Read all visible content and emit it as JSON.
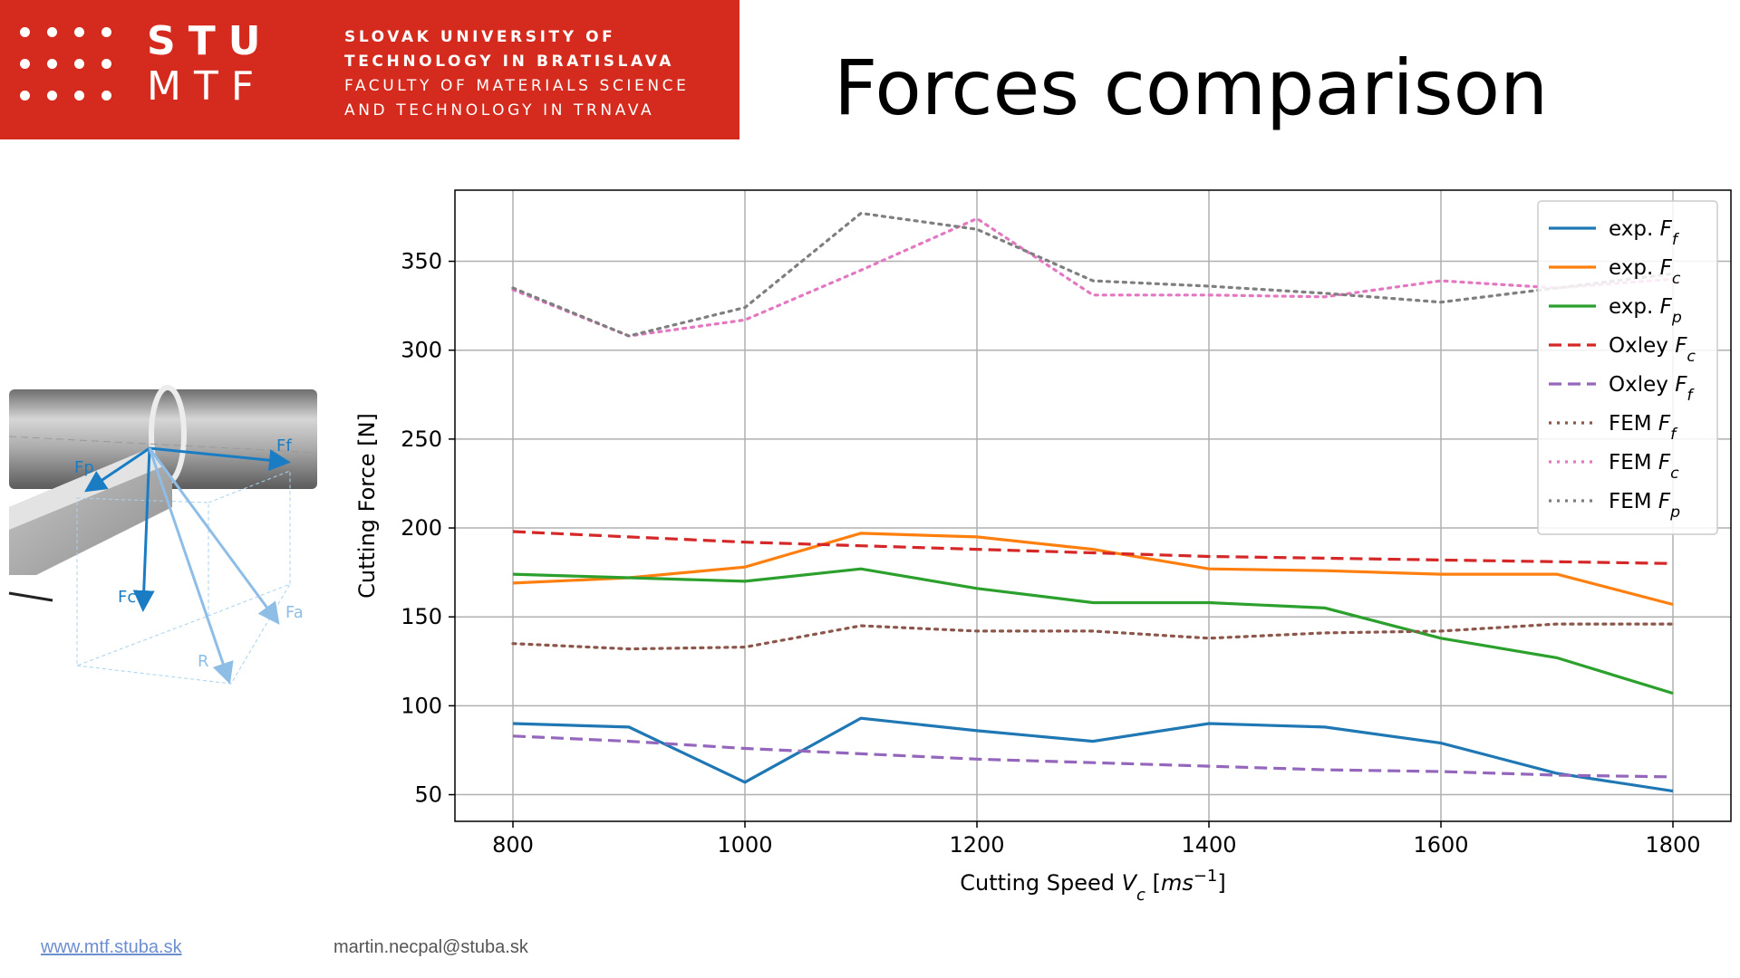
{
  "header": {
    "logo_top": "STU",
    "logo_bottom": "MTF",
    "university_lines": [
      "SLOVAK UNIVERSITY OF",
      "TECHNOLOGY IN BRATISLAVA",
      "FACULTY OF MATERIALS SCIENCE",
      "AND TECHNOLOGY IN TRNAVA"
    ],
    "brand_color": "#d52b1e"
  },
  "slide": {
    "title": "Forces comparison"
  },
  "diagram": {
    "labels": [
      "Ff",
      "Fp",
      "Fc",
      "Fa",
      "R"
    ]
  },
  "footer": {
    "link": "www.mtf.stuba.sk",
    "email": "martin.necpal@stuba.sk"
  },
  "chart_data": {
    "type": "line",
    "title": "",
    "xlabel": "Cutting Speed V_c [ms^-1]",
    "ylabel": "Cutting Force [N]",
    "xlim": [
      750,
      1850
    ],
    "ylim": [
      35,
      390
    ],
    "xticks": [
      800,
      1000,
      1200,
      1400,
      1600,
      1800
    ],
    "yticks": [
      50,
      100,
      150,
      200,
      250,
      300,
      350
    ],
    "grid": true,
    "legend_position": "top-right",
    "x": [
      800,
      900,
      1000,
      1100,
      1200,
      1300,
      1400,
      1500,
      1600,
      1700,
      1800
    ],
    "series": [
      {
        "name": "exp. F_f",
        "color": "#1f77b4",
        "style": "solid",
        "values": [
          90,
          88,
          57,
          93,
          86,
          80,
          90,
          88,
          79,
          62,
          52
        ]
      },
      {
        "name": "exp. F_c",
        "color": "#ff7f0e",
        "style": "solid",
        "values": [
          169,
          172,
          178,
          197,
          195,
          188,
          177,
          176,
          174,
          174,
          157
        ]
      },
      {
        "name": "exp. F_p",
        "color": "#2ca02c",
        "style": "solid",
        "values": [
          174,
          172,
          170,
          177,
          166,
          158,
          158,
          155,
          138,
          127,
          107
        ]
      },
      {
        "name": "Oxley F_c",
        "color": "#d62728",
        "style": "dashed",
        "values": [
          198,
          195,
          192,
          190,
          188,
          186,
          184,
          183,
          182,
          181,
          180
        ]
      },
      {
        "name": "Oxley F_f",
        "color": "#9467bd",
        "style": "dashed",
        "values": [
          83,
          80,
          76,
          73,
          70,
          68,
          66,
          64,
          63,
          61,
          60
        ]
      },
      {
        "name": "FEM F_f",
        "color": "#8c564b",
        "style": "dotted",
        "values": [
          135,
          132,
          133,
          145,
          142,
          142,
          138,
          141,
          142,
          146,
          146
        ]
      },
      {
        "name": "FEM F_c",
        "color": "#e377c2",
        "style": "dotted",
        "values": [
          334,
          308,
          317,
          345,
          374,
          331,
          331,
          330,
          339,
          335,
          340
        ]
      },
      {
        "name": "FEM F_p",
        "color": "#7f7f7f",
        "style": "dotted",
        "values": [
          335,
          308,
          324,
          377,
          368,
          339,
          336,
          332,
          327,
          335,
          343
        ]
      }
    ]
  }
}
